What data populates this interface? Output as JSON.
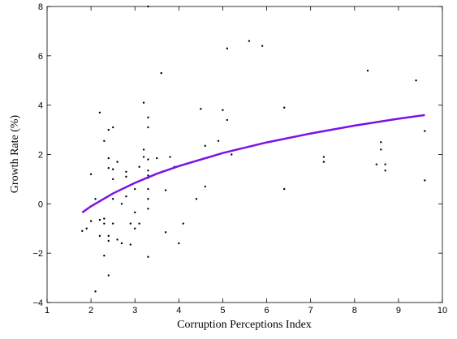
{
  "chart_data": {
    "type": "scatter",
    "xlabel": "Corruption Perceptions Index",
    "ylabel": "Growth Rate (%)",
    "xlim": [
      1,
      10
    ],
    "ylim": [
      -4,
      8
    ],
    "xticks": [
      1,
      2,
      3,
      4,
      5,
      6,
      7,
      8,
      9,
      10
    ],
    "yticks": [
      {
        "value": -4,
        "label": "−4"
      },
      {
        "value": -2,
        "label": "−2"
      },
      0,
      2,
      4,
      6,
      8
    ],
    "series": [
      {
        "mode": "markers",
        "color": "#000000",
        "x": [
          1.8,
          1.9,
          2.0,
          2.0,
          2.1,
          2.1,
          2.2,
          2.2,
          2.2,
          2.3,
          2.3,
          2.3,
          2.3,
          2.4,
          2.4,
          2.4,
          2.4,
          2.4,
          2.4,
          2.5,
          2.5,
          2.5,
          2.5,
          2.5,
          2.6,
          2.6,
          2.7,
          2.7,
          2.8,
          2.8,
          2.8,
          2.9,
          2.9,
          3.0,
          3.0,
          3.0,
          3.1,
          3.1,
          3.2,
          3.2,
          3.2,
          3.3,
          3.3,
          3.3,
          3.3,
          3.3,
          3.3,
          3.3,
          3.3,
          3.3,
          3.3,
          3.3,
          3.5,
          3.6,
          3.7,
          3.7,
          3.8,
          3.9,
          4.0,
          4.1,
          4.4,
          4.5,
          4.6,
          4.6,
          4.9,
          5.0,
          5.1,
          5.1,
          5.2,
          5.6,
          5.9,
          6.4,
          6.4,
          7.3,
          7.3,
          8.3,
          8.5,
          8.6,
          8.6,
          8.7,
          8.7,
          9.4,
          9.6,
          9.6
        ],
        "values": [
          -1.1,
          -1.0,
          1.2,
          -0.7,
          -3.55,
          0.2,
          3.7,
          -0.65,
          -1.3,
          2.55,
          -0.6,
          -0.8,
          -2.1,
          3.0,
          1.85,
          1.45,
          -1.3,
          -1.5,
          -2.9,
          3.1,
          1.4,
          1.0,
          0.2,
          -0.8,
          1.7,
          -1.45,
          0,
          -1.6,
          1.3,
          1.1,
          0.3,
          -0.8,
          -1.65,
          0.6,
          -0.35,
          -1.0,
          1.5,
          -0.8,
          4.1,
          2.2,
          1.9,
          1.8,
          1.35,
          1.15,
          8.0,
          3.5,
          3.1,
          1.05,
          0.6,
          0.2,
          -0.2,
          -2.15,
          1.85,
          5.3,
          0.55,
          -1.15,
          1.9,
          1.5,
          -1.6,
          -0.8,
          0.2,
          3.85,
          2.35,
          0.7,
          2.55,
          3.8,
          3.4,
          6.3,
          2.0,
          6.6,
          6.4,
          3.9,
          0.6,
          1.9,
          1.7,
          5.4,
          1.6,
          2.5,
          2.2,
          1.6,
          1.35,
          5.0,
          2.95,
          0.95
        ]
      },
      {
        "mode": "line",
        "color": "#7a12e8",
        "x": [
          1.8,
          2,
          2.5,
          3,
          3.5,
          4,
          5,
          6,
          7,
          8,
          9,
          9.6
        ],
        "values": [
          -0.35,
          -0.1,
          0.42,
          0.85,
          1.22,
          1.53,
          2.06,
          2.49,
          2.85,
          3.17,
          3.45,
          3.6
        ]
      }
    ]
  }
}
